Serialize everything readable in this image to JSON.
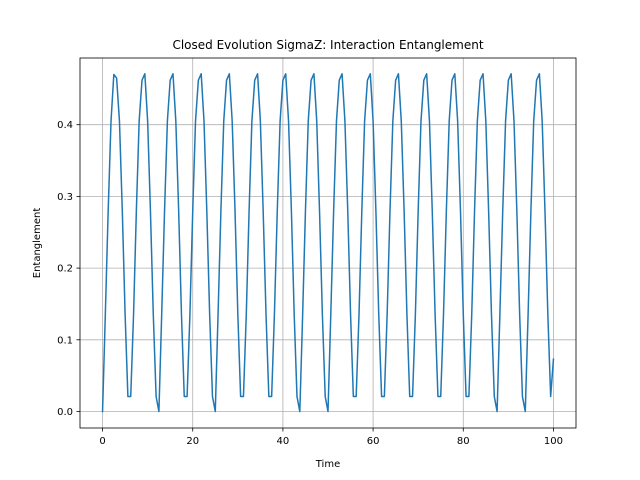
{
  "chart_data": {
    "type": "line",
    "title": "Closed Evolution SigmaZ: Interaction Entanglement",
    "xlabel": "Time",
    "ylabel": "Entanglement",
    "xlim": [
      -5,
      105
    ],
    "ylim": [
      -0.023,
      0.493
    ],
    "xticks": [
      0,
      20,
      40,
      60,
      80,
      100
    ],
    "xtick_labels": [
      "0",
      "20",
      "40",
      "60",
      "80",
      "100"
    ],
    "yticks": [
      0.0,
      0.1,
      0.2,
      0.3,
      0.4
    ],
    "ytick_labels": [
      "0.0",
      "0.1",
      "0.2",
      "0.3",
      "0.4"
    ],
    "grid": true,
    "legend": "none",
    "series": [
      {
        "color": "#1f77b4",
        "x": [
          0.0,
          0.62,
          1.25,
          1.88,
          2.5,
          3.12,
          3.75,
          4.38,
          5.0,
          5.62,
          6.25,
          6.88,
          7.5,
          8.12,
          8.75,
          9.38,
          10.0,
          10.62,
          11.25,
          11.88,
          12.5,
          13.12,
          13.75,
          14.38,
          15.0,
          15.62,
          16.25,
          16.88,
          17.5,
          18.12,
          18.75,
          19.38,
          20.0,
          20.62,
          21.25,
          21.88,
          22.5,
          23.12,
          23.75,
          24.38,
          25.0,
          25.62,
          26.25,
          26.88,
          27.5,
          28.12,
          28.75,
          29.38,
          30.0,
          30.62,
          31.25,
          31.88,
          32.5,
          33.12,
          33.75,
          34.38,
          35.0,
          35.62,
          36.25,
          36.88,
          37.5,
          38.12,
          38.75,
          39.38,
          40.0,
          40.62,
          41.25,
          41.88,
          42.5,
          43.12,
          43.75,
          44.38,
          45.0,
          45.62,
          46.25,
          46.88,
          47.5,
          48.12,
          48.75,
          49.38,
          50.0,
          50.62,
          51.25,
          51.88,
          52.5,
          53.12,
          53.75,
          54.38,
          55.0,
          55.62,
          56.25,
          56.88,
          57.5,
          58.12,
          58.75,
          59.38,
          60.0,
          60.62,
          61.25,
          61.88,
          62.5,
          63.12,
          63.75,
          64.38,
          65.0,
          65.62,
          66.25,
          66.88,
          67.5,
          68.12,
          68.75,
          69.38,
          70.0,
          70.62,
          71.25,
          71.88,
          72.5,
          73.12,
          73.75,
          74.38,
          75.0,
          75.62,
          76.25,
          76.88,
          77.5,
          78.12,
          78.75,
          79.38,
          80.0,
          80.62,
          81.25,
          81.88,
          82.5,
          83.12,
          83.75,
          84.38,
          85.0,
          85.62,
          86.25,
          86.88,
          87.5,
          88.12,
          88.75,
          89.38,
          90.0,
          90.62,
          91.25,
          91.88,
          92.5,
          93.12,
          93.75,
          94.38,
          95.0,
          95.62,
          96.25,
          96.88,
          97.5,
          98.12,
          98.75,
          99.38,
          100.0
        ],
        "y": [
          0.0,
          0.136,
          0.28,
          0.405,
          0.47,
          0.465,
          0.405,
          0.28,
          0.136,
          0.021,
          0.021,
          0.136,
          0.28,
          0.405,
          0.462,
          0.471,
          0.405,
          0.28,
          0.136,
          0.021,
          0.0,
          0.136,
          0.28,
          0.405,
          0.462,
          0.471,
          0.405,
          0.28,
          0.136,
          0.021,
          0.021,
          0.136,
          0.28,
          0.405,
          0.462,
          0.471,
          0.405,
          0.28,
          0.136,
          0.021,
          0.0,
          0.136,
          0.28,
          0.405,
          0.462,
          0.471,
          0.405,
          0.28,
          0.136,
          0.021,
          0.021,
          0.136,
          0.28,
          0.405,
          0.462,
          0.471,
          0.405,
          0.28,
          0.136,
          0.021,
          0.021,
          0.136,
          0.28,
          0.405,
          0.462,
          0.471,
          0.405,
          0.28,
          0.136,
          0.021,
          0.0,
          0.136,
          0.28,
          0.405,
          0.462,
          0.471,
          0.405,
          0.28,
          0.136,
          0.021,
          0.0,
          0.136,
          0.28,
          0.405,
          0.462,
          0.471,
          0.405,
          0.28,
          0.136,
          0.021,
          0.021,
          0.136,
          0.28,
          0.405,
          0.462,
          0.471,
          0.405,
          0.28,
          0.136,
          0.021,
          0.021,
          0.136,
          0.28,
          0.405,
          0.462,
          0.471,
          0.405,
          0.28,
          0.136,
          0.021,
          0.021,
          0.136,
          0.28,
          0.405,
          0.462,
          0.471,
          0.405,
          0.28,
          0.136,
          0.021,
          0.021,
          0.136,
          0.28,
          0.405,
          0.462,
          0.471,
          0.405,
          0.28,
          0.136,
          0.021,
          0.021,
          0.136,
          0.28,
          0.405,
          0.462,
          0.471,
          0.405,
          0.28,
          0.136,
          0.021,
          0.0,
          0.136,
          0.28,
          0.405,
          0.462,
          0.471,
          0.405,
          0.28,
          0.136,
          0.021,
          0.0,
          0.136,
          0.28,
          0.405,
          0.462,
          0.471,
          0.405,
          0.28,
          0.136,
          0.021,
          0.073
        ]
      }
    ]
  }
}
